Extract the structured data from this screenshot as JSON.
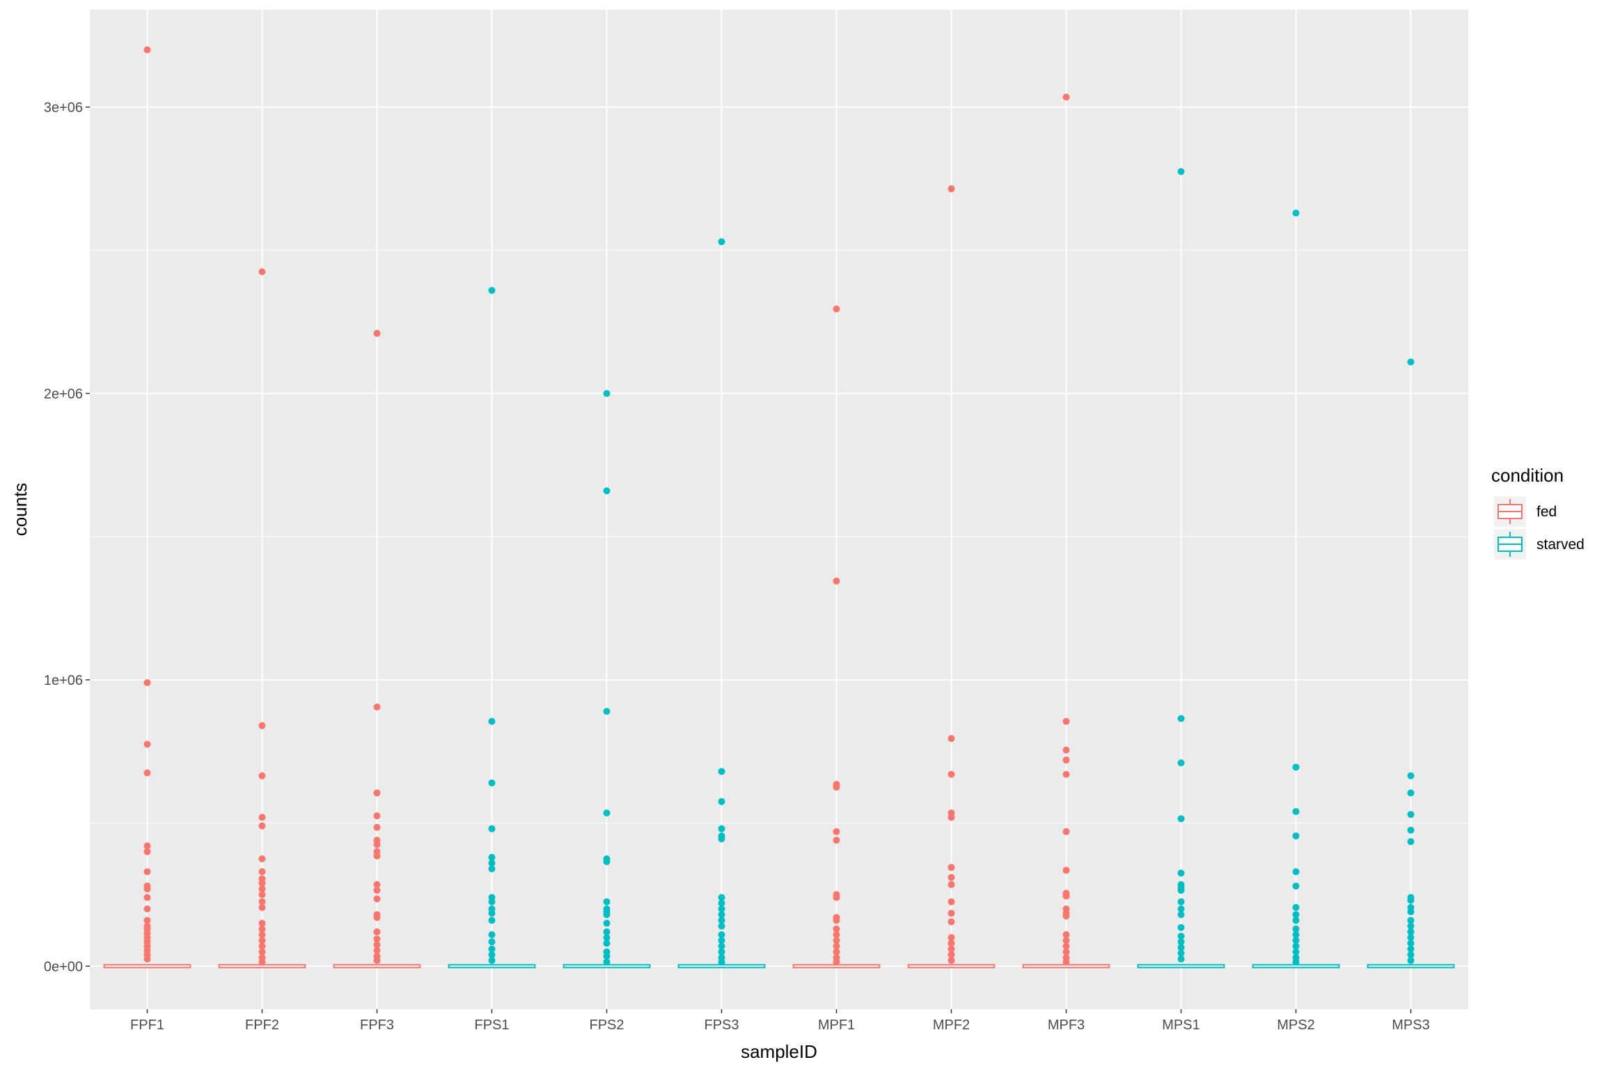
{
  "chart_data": {
    "type": "box",
    "title": "",
    "xlabel": "sampleID",
    "ylabel": "counts",
    "ylim": [
      -150000,
      3340000
    ],
    "yticks": [
      0,
      1000000,
      2000000,
      3000000
    ],
    "ytick_labels": [
      "0e+00",
      "1e+06",
      "2e+06",
      "3e+06"
    ],
    "grid": true,
    "legend": {
      "title": "condition",
      "placement": "right",
      "entries": [
        {
          "label": "fed",
          "color": "#F8766D"
        },
        {
          "label": "starved",
          "color": "#00BFC4"
        }
      ]
    },
    "categories": [
      "FPF1",
      "FPF2",
      "FPF3",
      "FPS1",
      "FPS2",
      "FPS3",
      "MPF1",
      "MPF2",
      "MPF3",
      "MPS1",
      "MPS2",
      "MPS3"
    ],
    "groups": [
      "fed",
      "fed",
      "fed",
      "starved",
      "starved",
      "starved",
      "fed",
      "fed",
      "fed",
      "starved",
      "starved",
      "starved"
    ],
    "colors": {
      "fed": "#F8766D",
      "starved": "#00BFC4"
    },
    "box_values": [
      0,
      0,
      0,
      0,
      0,
      0,
      0,
      0,
      0,
      0,
      0,
      0
    ],
    "outliers": [
      [
        3200000,
        990000,
        775000,
        675000,
        420000,
        400000,
        330000,
        280000,
        270000,
        240000,
        200000,
        160000,
        140000,
        130000,
        115000,
        100000,
        85000,
        70000,
        55000,
        40000,
        25000
      ],
      [
        2425000,
        840000,
        665000,
        520000,
        490000,
        375000,
        330000,
        305000,
        290000,
        270000,
        250000,
        225000,
        205000,
        150000,
        130000,
        110000,
        90000,
        70000,
        50000,
        30000,
        15000
      ],
      [
        2210000,
        905000,
        605000,
        525000,
        485000,
        440000,
        425000,
        400000,
        385000,
        285000,
        265000,
        235000,
        180000,
        170000,
        120000,
        95000,
        75000,
        55000,
        35000,
        20000
      ],
      [
        2360000,
        855000,
        640000,
        480000,
        380000,
        360000,
        340000,
        240000,
        225000,
        200000,
        185000,
        160000,
        110000,
        85000,
        60000,
        40000,
        20000
      ],
      [
        2000000,
        1660000,
        890000,
        535000,
        375000,
        365000,
        225000,
        200000,
        190000,
        180000,
        150000,
        120000,
        100000,
        80000,
        50000,
        35000,
        15000
      ],
      [
        2530000,
        680000,
        575000,
        480000,
        455000,
        445000,
        240000,
        220000,
        200000,
        180000,
        160000,
        140000,
        110000,
        90000,
        70000,
        50000,
        30000,
        15000
      ],
      [
        2295000,
        1345000,
        635000,
        625000,
        470000,
        440000,
        250000,
        240000,
        170000,
        160000,
        130000,
        110000,
        90000,
        70000,
        50000,
        30000,
        15000
      ],
      [
        2715000,
        795000,
        670000,
        535000,
        520000,
        345000,
        310000,
        285000,
        225000,
        185000,
        155000,
        100000,
        80000,
        60000,
        40000,
        20000
      ],
      [
        3035000,
        855000,
        755000,
        720000,
        670000,
        470000,
        335000,
        255000,
        245000,
        200000,
        185000,
        175000,
        110000,
        90000,
        70000,
        50000,
        30000,
        15000
      ],
      [
        2775000,
        865000,
        710000,
        515000,
        325000,
        285000,
        275000,
        265000,
        225000,
        200000,
        180000,
        135000,
        105000,
        85000,
        65000,
        45000,
        25000
      ],
      [
        2630000,
        695000,
        540000,
        455000,
        330000,
        280000,
        205000,
        180000,
        160000,
        130000,
        110000,
        90000,
        70000,
        50000,
        30000,
        15000
      ],
      [
        2110000,
        665000,
        605000,
        530000,
        475000,
        435000,
        240000,
        230000,
        205000,
        190000,
        160000,
        140000,
        120000,
        100000,
        80000,
        60000,
        40000,
        20000
      ]
    ]
  }
}
